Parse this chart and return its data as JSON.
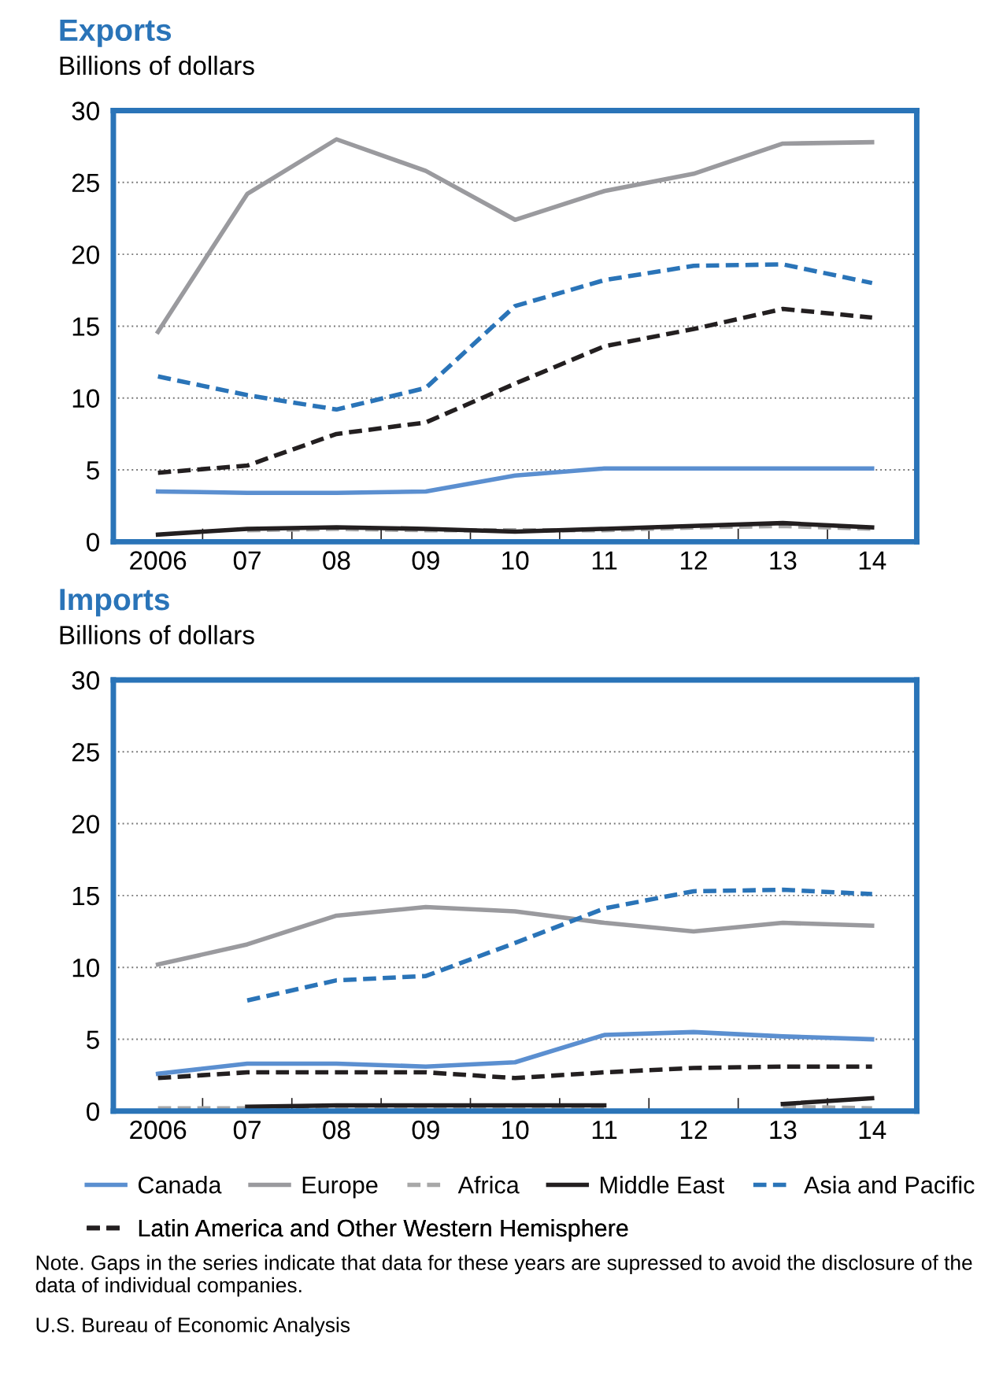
{
  "chart_data": [
    {
      "type": "line",
      "title": "Exports",
      "ylabel": "Billions of dollars",
      "categories": [
        "2006",
        "07",
        "08",
        "09",
        "10",
        "11",
        "12",
        "13",
        "14"
      ],
      "ylim": [
        0,
        30
      ],
      "yticks": [
        0,
        5,
        10,
        15,
        20,
        25,
        30
      ],
      "grid": "y",
      "series": [
        {
          "color": "#5b8fd0",
          "line_style": "solid",
          "values": [
            3.5,
            3.4,
            3.4,
            3.5,
            4.6,
            5.1,
            5.1,
            5.1,
            5.1
          ]
        },
        {
          "color": "#9a9a9e",
          "line_style": "solid",
          "values": [
            14.6,
            24.2,
            28.0,
            25.8,
            22.4,
            24.4,
            25.6,
            27.7,
            27.8
          ]
        },
        {
          "color": "#a8a8a8",
          "line_style": "dashed",
          "values": [
            null,
            0.8,
            0.9,
            0.8,
            0.8,
            0.8,
            1.0,
            1.1,
            0.9
          ]
        },
        {
          "color": "#231f20",
          "line_style": "solid",
          "values": [
            0.5,
            0.9,
            1.0,
            0.9,
            0.7,
            0.9,
            1.1,
            1.3,
            1.0
          ]
        },
        {
          "color": "#2a74b8",
          "line_style": "dashed",
          "values": [
            11.5,
            10.2,
            9.2,
            10.7,
            16.4,
            18.2,
            19.2,
            19.3,
            18.0
          ]
        },
        {
          "color": "#231f20",
          "line_style": "dashed",
          "values": [
            4.8,
            5.3,
            7.5,
            8.3,
            11.0,
            13.6,
            14.8,
            16.2,
            15.6
          ]
        }
      ]
    },
    {
      "type": "line",
      "title": "Imports",
      "ylabel": "Billions of dollars",
      "categories": [
        "2006",
        "07",
        "08",
        "09",
        "10",
        "11",
        "12",
        "13",
        "14"
      ],
      "ylim": [
        0,
        30
      ],
      "yticks": [
        0,
        5,
        10,
        15,
        20,
        25,
        30
      ],
      "grid": "y",
      "legend": "bottom",
      "annotations": [
        "Note. Gaps in the series indicate that data for these years are supressed to avoid the disclosure of the data of individual companies.",
        "U.S. Bureau of Economic Analysis"
      ],
      "series": [
        {
          "name": "Canada",
          "color": "#5b8fd0",
          "line_style": "solid",
          "values": [
            2.6,
            3.3,
            3.3,
            3.1,
            3.4,
            5.3,
            5.5,
            5.2,
            5.0
          ]
        },
        {
          "name": "Europe",
          "color": "#9a9a9e",
          "line_style": "solid",
          "values": [
            10.2,
            11.6,
            13.6,
            14.2,
            13.9,
            13.1,
            12.5,
            13.1,
            12.9
          ]
        },
        {
          "name": "Africa",
          "color": "#a8a8a8",
          "line_style": "dashed",
          "values": [
            0.2,
            0.2,
            0.2,
            0.3,
            0.3,
            0.3,
            null,
            0.3,
            0.2
          ]
        },
        {
          "name": "Middle East",
          "color": "#231f20",
          "line_style": "solid",
          "values": [
            null,
            0.3,
            0.4,
            0.4,
            0.4,
            0.4,
            null,
            0.5,
            0.9
          ]
        },
        {
          "name": "Asia and Pacific",
          "color": "#2a74b8",
          "line_style": "dashed",
          "values": [
            null,
            7.7,
            9.1,
            9.4,
            11.7,
            14.1,
            15.3,
            15.4,
            15.1
          ]
        },
        {
          "name": "Latin America and Other Western Hemisphere",
          "color": "#231f20",
          "line_style": "dashed",
          "values": [
            2.3,
            2.7,
            2.7,
            2.7,
            2.3,
            2.7,
            3.0,
            3.1,
            3.1
          ]
        }
      ]
    }
  ]
}
